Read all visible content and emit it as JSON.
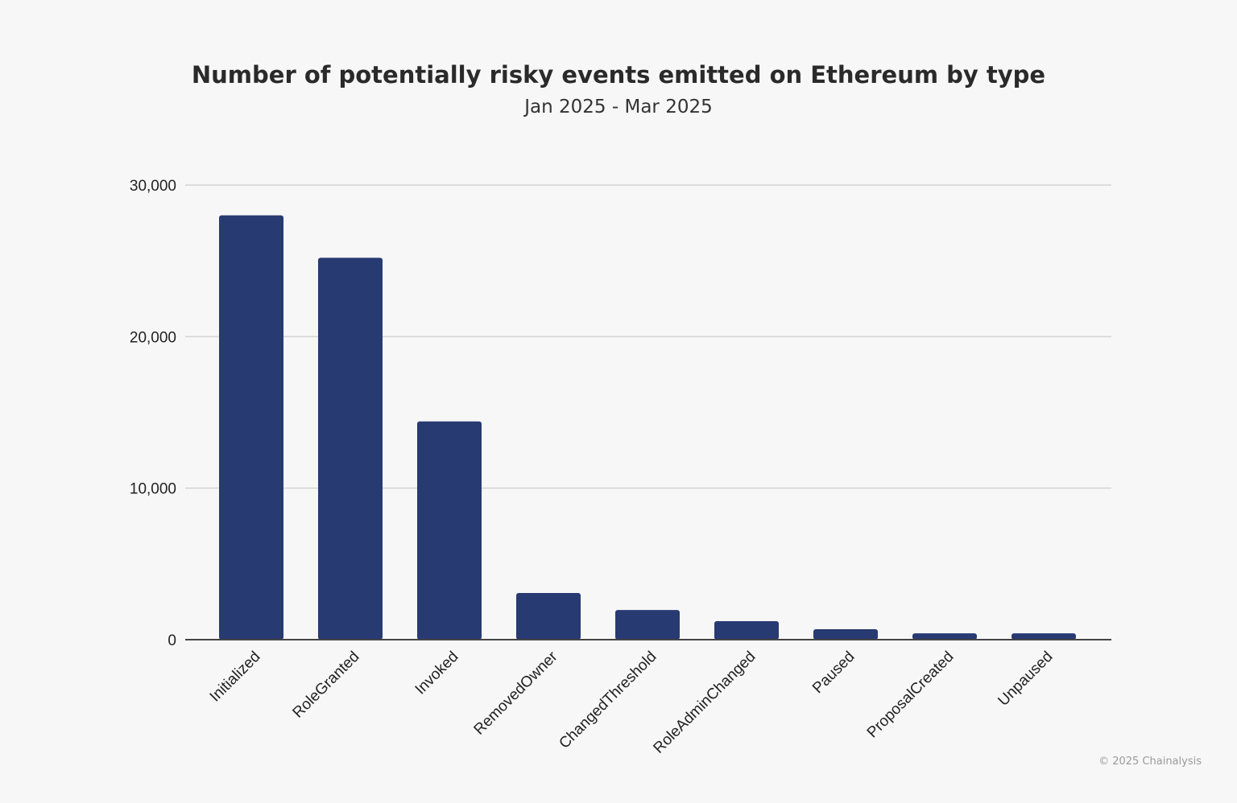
{
  "chart_data": {
    "type": "bar",
    "title": "Number of potentially risky events emitted on Ethereum by type",
    "subtitle": "Jan 2025 - Mar 2025",
    "xlabel": "",
    "ylabel": "",
    "categories": [
      "Initialized",
      "RoleGranted",
      "Invoked",
      "RemovedOwner",
      "ChangedThreshold",
      "RoleAdminChanged",
      "Paused",
      "ProposalCreated",
      "Unpaused"
    ],
    "values": [
      28000,
      25200,
      14400,
      3080,
      1960,
      1220,
      690,
      420,
      420
    ],
    "ylim": [
      0,
      30000
    ],
    "yticks": [
      0,
      10000,
      20000,
      30000
    ],
    "ytick_labels": [
      "0",
      "10,000",
      "20,000",
      "30,000"
    ],
    "grid": true,
    "bar_color": "#283a72"
  },
  "credit": "© 2025 Chainalysis"
}
